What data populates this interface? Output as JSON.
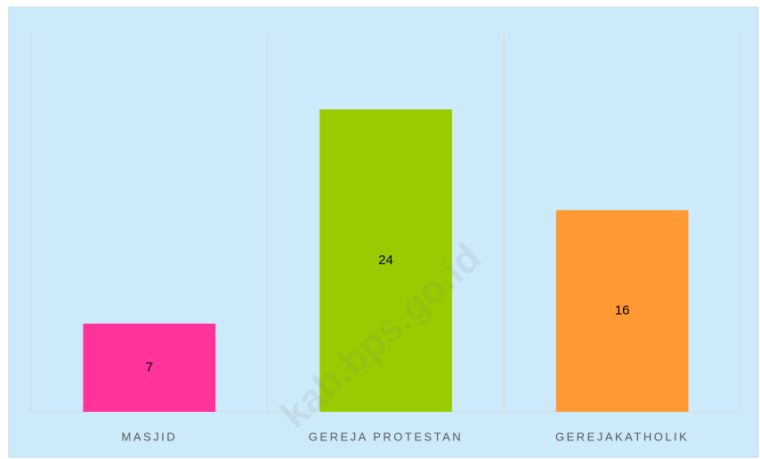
{
  "chart_data": {
    "type": "bar",
    "categories": [
      "MASJID",
      "GEREJA PROTESTAN",
      "GEREJAKATHOLIK"
    ],
    "values": [
      7,
      24,
      16
    ],
    "colors": [
      "#ff3399",
      "#99cc00",
      "#ff9933"
    ],
    "ylim": [
      0,
      30
    ],
    "watermark": "kab.bps.go.id"
  }
}
